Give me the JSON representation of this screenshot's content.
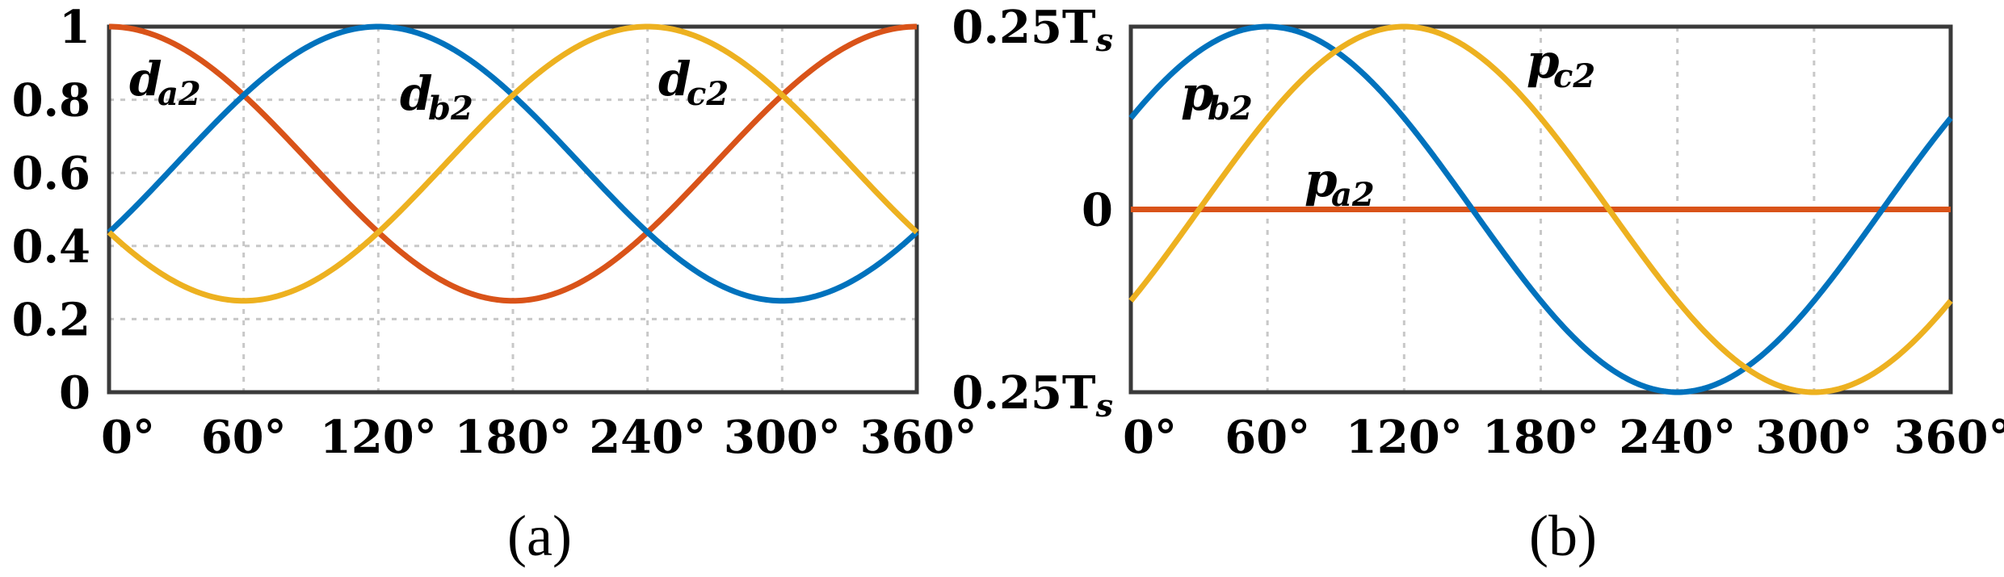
{
  "panels": [
    {
      "caption": "(a)",
      "chart_data": {
        "type": "line",
        "xlim": [
          0,
          360
        ],
        "ylim": [
          0,
          1
        ],
        "x_ticks": [
          0,
          60,
          120,
          180,
          240,
          300,
          360
        ],
        "x_tick_labels": [
          "0°",
          "60°",
          "120°",
          "180°",
          "240°",
          "300°",
          "360°"
        ],
        "y_ticks": [
          0,
          0.2,
          0.4,
          0.6,
          0.8,
          1
        ],
        "y_tick_labels": [
          "0",
          "0.2",
          "0.4",
          "0.6",
          "0.8",
          "1"
        ],
        "grid": true,
        "series": [
          {
            "name": "d",
            "sub": "a2",
            "color": "#d95319",
            "formula": "0.625+0.375*cos(x)"
          },
          {
            "name": "d",
            "sub": "b2",
            "color": "#0072bd",
            "formula": "0.625+0.375*cos(x-120)"
          },
          {
            "name": "d",
            "sub": "c2",
            "color": "#edb120",
            "formula": "0.625+0.375*cos(x-240)"
          }
        ],
        "x": [
          0,
          30,
          60,
          90,
          120,
          150,
          180,
          210,
          240,
          270,
          300,
          330,
          360
        ],
        "sample_values": {
          "a2": [
            1,
            0.95,
            0.8125,
            0.625,
            0.4375,
            0.3,
            0.25,
            0.3,
            0.4375,
            0.625,
            0.8125,
            0.95,
            1
          ],
          "b2": [
            0.4375,
            0.625,
            0.8125,
            0.95,
            1,
            0.95,
            0.8125,
            0.625,
            0.4375,
            0.3,
            0.25,
            0.3,
            0.4375
          ],
          "c2": [
            0.4375,
            0.3,
            0.25,
            0.3,
            0.4375,
            0.625,
            0.8125,
            0.95,
            1,
            0.95,
            0.8125,
            0.625,
            0.4375
          ]
        }
      }
    },
    {
      "caption": "(b)",
      "chart_data": {
        "type": "line",
        "xlim": [
          0,
          360
        ],
        "ylim": [
          -1,
          1
        ],
        "x_ticks": [
          0,
          60,
          120,
          180,
          240,
          300,
          360
        ],
        "x_tick_labels": [
          "0°",
          "60°",
          "120°",
          "180°",
          "240°",
          "300°",
          "360°"
        ],
        "y_ticks": [
          -1,
          0,
          1
        ],
        "y_tick_labels": [
          "0.25Ts",
          "0",
          "0.25Ts"
        ],
        "grid": true,
        "series": [
          {
            "name": "p",
            "sub": "a2",
            "color": "#d95319",
            "formula": "0"
          },
          {
            "name": "p",
            "sub": "b2",
            "color": "#0072bd",
            "formula": "sin(x+30)"
          },
          {
            "name": "p",
            "sub": "c2",
            "color": "#edb120",
            "formula": "sin(x-30)"
          }
        ],
        "x": [
          0,
          30,
          60,
          90,
          120,
          150,
          180,
          210,
          240,
          270,
          300,
          330,
          360
        ],
        "sample_values": {
          "a2": [
            0,
            0,
            0,
            0,
            0,
            0,
            0,
            0,
            0,
            0,
            0,
            0,
            0
          ],
          "b2": [
            0.5,
            0.866,
            1,
            0.866,
            0.5,
            0,
            -0.5,
            -0.866,
            -1,
            -0.866,
            -0.5,
            0,
            0.5
          ],
          "c2": [
            -0.5,
            0,
            0.5,
            0.866,
            1,
            0.866,
            0.5,
            0,
            -0.5,
            -0.866,
            -1,
            -0.866,
            -0.5
          ]
        }
      }
    }
  ]
}
